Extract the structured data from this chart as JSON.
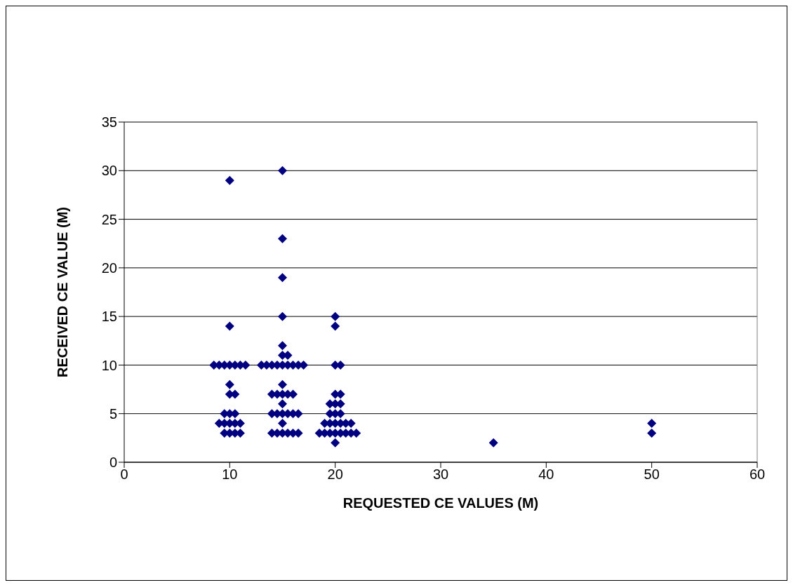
{
  "chart_data": {
    "type": "scatter",
    "xlabel": "REQUESTED CE VALUES (M)",
    "ylabel": "RECEIVED CE VALUE (M)",
    "xlim": [
      0,
      60
    ],
    "xticks": [
      0,
      10,
      20,
      30,
      40,
      50,
      60
    ],
    "ylim": [
      0,
      35
    ],
    "yticks": [
      0,
      5,
      10,
      15,
      20,
      25,
      30,
      35
    ],
    "grid": "y",
    "legend": false,
    "marker": "diamond",
    "series": [
      {
        "color": "#000080",
        "x": [
          10,
          10,
          8.5,
          9,
          9.5,
          10,
          10.5,
          11,
          11.5,
          10,
          10,
          10.5,
          9.5,
          10,
          10.5,
          9,
          9.5,
          10,
          10.5,
          11,
          9.5,
          10,
          10.5,
          11,
          15,
          15,
          15,
          15,
          15,
          15,
          15.5,
          13,
          13.5,
          14,
          14.5,
          15,
          15.5,
          16,
          16.5,
          17,
          15,
          14,
          14.5,
          15,
          15.5,
          16,
          15,
          14,
          14.5,
          15,
          15.5,
          16,
          16.5,
          15,
          14,
          14.5,
          15,
          15.5,
          16,
          16.5,
          20,
          20,
          20,
          20.5,
          20,
          20.5,
          19.5,
          20,
          20.5,
          19.5,
          20,
          20.5,
          19,
          19.5,
          20,
          20.5,
          21,
          21.5,
          18.5,
          19,
          19.5,
          20,
          20.5,
          21,
          21.5,
          22,
          20,
          35,
          50,
          50
        ],
        "values": [
          29,
          14,
          10,
          10,
          10,
          10,
          10,
          10,
          10,
          8,
          7,
          7,
          5,
          5,
          5,
          4,
          4,
          4,
          4,
          4,
          3,
          3,
          3,
          3,
          30,
          23,
          19,
          15,
          12,
          11,
          11,
          10,
          10,
          10,
          10,
          10,
          10,
          10,
          10,
          10,
          8,
          7,
          7,
          7,
          7,
          7,
          6,
          5,
          5,
          5,
          5,
          5,
          5,
          4,
          3,
          3,
          3,
          3,
          3,
          3,
          15,
          14,
          10,
          10,
          7,
          7,
          6,
          6,
          6,
          5,
          5,
          5,
          4,
          4,
          4,
          4,
          4,
          4,
          3,
          3,
          3,
          3,
          3,
          3,
          3,
          3,
          2,
          2,
          4,
          3
        ]
      }
    ]
  }
}
